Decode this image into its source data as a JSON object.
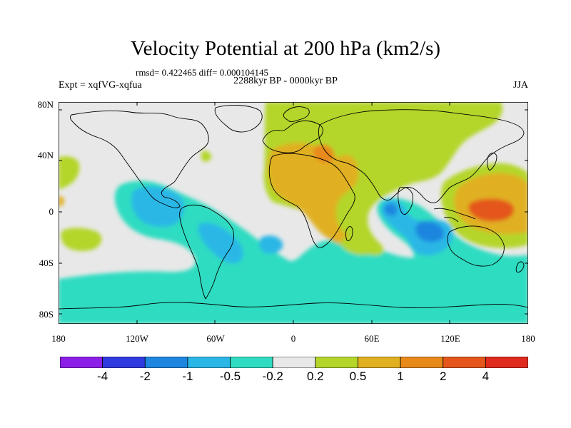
{
  "title": "Velocity Potential at 200 hPa (km2/s)",
  "stats_line": "rmsd= 0.422465 diff= 0.000104145",
  "period": "2288kyr BP - 0000kyr BP",
  "experiment": "Expt = xqfVG-xqfua",
  "season": "JJA",
  "y_axis_labels": [
    "80N",
    "40N",
    "0",
    "40S",
    "80S"
  ],
  "x_axis_labels": [
    "180",
    "120W",
    "60W",
    "0",
    "60E",
    "120E",
    "180"
  ],
  "colorbar": {
    "colors": [
      "#8b1fe8",
      "#2f3ae0",
      "#1e86df",
      "#2ab7e6",
      "#2fdcc1",
      "#e8e8e8",
      "#b4d62a",
      "#e0b020",
      "#e88a1a",
      "#e4561b",
      "#e02a1e"
    ],
    "labels": [
      "-4",
      "-2",
      "-1",
      "-0.5",
      "-0.2",
      "0.2",
      "0.5",
      "1",
      "2",
      "4"
    ]
  },
  "map_colors": {
    "neutral": "#e8e8e8",
    "light_pos": "#b4d62a",
    "med_pos": "#e0b020",
    "strong_pos": "#e88a1a",
    "very_strong_pos": "#e4561b",
    "light_neg": "#2fdcc1",
    "med_neg": "#2ab7e6",
    "strong_neg": "#1e86df"
  }
}
